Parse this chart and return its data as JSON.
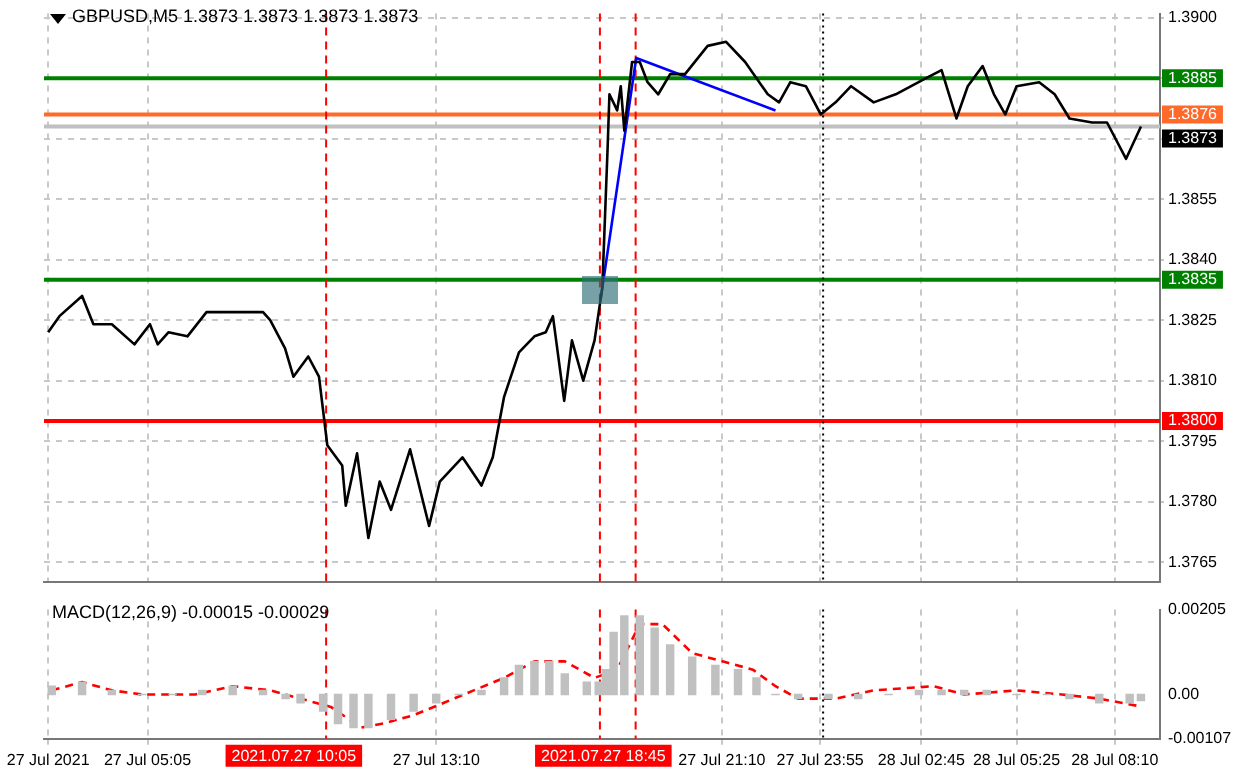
{
  "chart_data": [
    {
      "type": "line",
      "title": "GBPUSD,M5 1.3873 1.3873 1.3873 1.3873",
      "xlim": [
        "2021-07-27T02:11",
        "2021-07-28T09:26"
      ],
      "xticks": [
        "2021-07-27T02:18",
        "2021-07-27T05:05",
        "2021-07-27T13:10",
        "2021-07-27T21:10",
        "2021-07-27T23:55",
        "2021-07-28T02:45",
        "2021-07-28T05:25",
        "2021-07-28T08:10"
      ],
      "ylim": [
        1.376,
        1.3901
      ],
      "yticks": [
        {
          "value": 1.39,
          "label": "1.3900"
        },
        {
          "value": 1.3885,
          "label": null
        },
        {
          "value": 1.387,
          "label": null
        },
        {
          "value": 1.3855,
          "label": "1.3855"
        },
        {
          "value": 1.384,
          "label": "1.3840"
        },
        {
          "value": 1.3825,
          "label": "1.3825"
        },
        {
          "value": 1.381,
          "label": "1.3810"
        },
        {
          "value": 1.3795,
          "label": "1.3795"
        },
        {
          "value": 1.378,
          "label": "1.3780"
        },
        {
          "value": 1.3765,
          "label": "1.3765"
        }
      ],
      "tick_labels": "y",
      "grid": true,
      "legend": false,
      "marker": "none",
      "series": [
        {
          "color": "#000000",
          "x": [
            "2021-07-27T02:18",
            "2021-07-27T02:37",
            "2021-07-27T03:15",
            "2021-07-27T03:34",
            "2021-07-27T04:05",
            "2021-07-27T04:43",
            "2021-07-27T05:09",
            "2021-07-27T05:22",
            "2021-07-27T05:40",
            "2021-07-27T06:12",
            "2021-07-27T06:44",
            "2021-07-27T07:16",
            "2021-07-27T07:41",
            "2021-07-27T08:19",
            "2021-07-27T08:31",
            "2021-07-27T08:56",
            "2021-07-27T09:10",
            "2021-07-27T09:35",
            "2021-07-27T09:53",
            "2021-07-27T10:07",
            "2021-07-27T10:32",
            "2021-07-27T10:38",
            "2021-07-27T10:57",
            "2021-07-27T11:16",
            "2021-07-27T11:35",
            "2021-07-27T11:54",
            "2021-07-27T12:26",
            "2021-07-27T12:58",
            "2021-07-27T13:16",
            "2021-07-27T13:54",
            "2021-07-27T14:26",
            "2021-07-27T14:45",
            "2021-07-27T15:04",
            "2021-07-27T15:29",
            "2021-07-27T15:55",
            "2021-07-27T16:14",
            "2021-07-27T16:26",
            "2021-07-27T16:45",
            "2021-07-27T16:58",
            "2021-07-27T17:17",
            "2021-07-27T17:36",
            "2021-07-27T17:49",
            "2021-07-27T17:58",
            "2021-07-27T18:01",
            "2021-07-27T18:14",
            "2021-07-27T18:20",
            "2021-07-27T18:26",
            "2021-07-27T18:39",
            "2021-07-27T18:52",
            "2021-07-27T19:05",
            "2021-07-27T19:23",
            "2021-07-27T19:43",
            "2021-07-27T20:08",
            "2021-07-27T20:46",
            "2021-07-27T21:17",
            "2021-07-27T21:49",
            "2021-07-27T22:27",
            "2021-07-27T22:46",
            "2021-07-27T23:05",
            "2021-07-27T23:31",
            "2021-07-27T23:56",
            "2021-07-28T00:21",
            "2021-07-28T00:47",
            "2021-07-28T01:25",
            "2021-07-28T02:02",
            "2021-07-28T02:53",
            "2021-07-28T03:19",
            "2021-07-28T03:44",
            "2021-07-28T04:03",
            "2021-07-28T04:28",
            "2021-07-28T04:47",
            "2021-07-28T05:06",
            "2021-07-28T05:25",
            "2021-07-28T06:03",
            "2021-07-28T06:29",
            "2021-07-28T06:54",
            "2021-07-28T07:32",
            "2021-07-28T07:57",
            "2021-07-28T08:29",
            "2021-07-28T08:54"
          ],
          "values": [
            1.3822,
            1.3826,
            1.3831,
            1.3824,
            1.3824,
            1.3819,
            1.3824,
            1.3819,
            1.3822,
            1.3821,
            1.3827,
            1.3827,
            1.3827,
            1.3827,
            1.3825,
            1.3818,
            1.3811,
            1.3816,
            1.3811,
            1.3794,
            1.3789,
            1.3779,
            1.3792,
            1.3771,
            1.3785,
            1.3778,
            1.3793,
            1.3774,
            1.3785,
            1.3791,
            1.3784,
            1.3791,
            1.3806,
            1.3817,
            1.3821,
            1.3822,
            1.3826,
            1.3805,
            1.382,
            1.381,
            1.382,
            1.3833,
            1.3868,
            1.3881,
            1.3877,
            1.3883,
            1.3872,
            1.3889,
            1.3889,
            1.3884,
            1.3881,
            1.3886,
            1.3886,
            1.3893,
            1.3894,
            1.3889,
            1.3881,
            1.3879,
            1.3884,
            1.3883,
            1.3876,
            1.3879,
            1.3883,
            1.3879,
            1.3881,
            1.3885,
            1.3887,
            1.3875,
            1.3883,
            1.3888,
            1.3881,
            1.3876,
            1.3883,
            1.3884,
            1.3881,
            1.3875,
            1.3874,
            1.3874,
            1.3865,
            1.3873
          ]
        },
        {
          "color": "#0000ff",
          "x": [
            "2021-07-27T17:46",
            "2021-07-27T18:46",
            "2021-07-27T22:40"
          ],
          "values": [
            1.383,
            1.389,
            1.3877
          ]
        }
      ],
      "ref_lines": [
        {
          "axis": "y",
          "value": 1.3885,
          "label": "1.3885",
          "color": "#008000"
        },
        {
          "axis": "y",
          "value": 1.3876,
          "label": "1.3876",
          "color": "#ff6a2a"
        },
        {
          "axis": "y",
          "value": 1.3873,
          "label": "1.3873",
          "color": "#c0c0c0"
        },
        {
          "axis": "y",
          "value": 1.3835,
          "label": "1.3835",
          "color": "#008000"
        },
        {
          "axis": "y",
          "value": 1.38,
          "label": "1.3800",
          "color": "#ff0000"
        },
        {
          "axis": "x",
          "value": "2021-07-27T10:05",
          "color": "#ff0000",
          "line_style": "dashed"
        },
        {
          "axis": "x",
          "value": "2021-07-27T17:45",
          "color": "#ff0000",
          "line_style": "dashed"
        },
        {
          "axis": "x",
          "value": "2021-07-27T18:45",
          "color": "#ff0000",
          "line_style": "dashed"
        },
        {
          "axis": "x",
          "value": "2021-07-28T00:00",
          "color": "#000000",
          "line_style": "dotted"
        }
      ]
    },
    {
      "type": "bar",
      "title": "MACD(12,26,9) -0.00015 -0.00029",
      "xlim": [
        "2021-07-27T02:11",
        "2021-07-28T09:26"
      ],
      "xticks": [
        {
          "value": "2021-07-27T02:18",
          "label": "27 Jul 2021"
        },
        {
          "value": "2021-07-27T05:05",
          "label": "27 Jul 05:05"
        },
        {
          "value": "2021-07-27T13:10",
          "label": "27 Jul 13:10"
        },
        {
          "value": "2021-07-27T21:10",
          "label": "27 Jul 21:10"
        },
        {
          "value": "2021-07-27T23:55",
          "label": "27 Jul 23:55"
        },
        {
          "value": "2021-07-28T02:45",
          "label": "28 Jul 02:45"
        },
        {
          "value": "2021-07-28T05:25",
          "label": "28 Jul 05:25"
        },
        {
          "value": "2021-07-28T08:10",
          "label": "28 Jul 08:10"
        }
      ],
      "ylim": [
        -0.00107,
        0.00205
      ],
      "yticks": [
        0.00205,
        {
          "value": 0,
          "label": "0.00"
        },
        -0.00107
      ],
      "grid": "x",
      "legend": false,
      "marker": "none",
      "series": [
        {
          "color": "#c0c0c0",
          "x": [
            "2021-07-27T02:24",
            "2021-07-27T03:15",
            "2021-07-27T04:05",
            "2021-07-27T04:56",
            "2021-07-27T05:47",
            "2021-07-27T06:37",
            "2021-07-27T07:28",
            "2021-07-27T08:19",
            "2021-07-27T08:57",
            "2021-07-27T09:22",
            "2021-07-27T10:00",
            "2021-07-27T10:25",
            "2021-07-27T10:51",
            "2021-07-27T11:16",
            "2021-07-27T11:54",
            "2021-07-27T12:32",
            "2021-07-27T13:10",
            "2021-07-27T13:48",
            "2021-07-27T14:26",
            "2021-07-27T15:04",
            "2021-07-27T15:29",
            "2021-07-27T15:55",
            "2021-07-27T16:20",
            "2021-07-27T16:46",
            "2021-07-27T17:23",
            "2021-07-27T17:43",
            "2021-07-27T17:55",
            "2021-07-27T18:08",
            "2021-07-27T18:26",
            "2021-07-27T18:52",
            "2021-07-27T19:17",
            "2021-07-27T19:43",
            "2021-07-27T20:20",
            "2021-07-27T20:59",
            "2021-07-27T21:37",
            "2021-07-27T22:08",
            "2021-07-27T22:40",
            "2021-07-27T23:18",
            "2021-07-28T00:09",
            "2021-07-28T00:59",
            "2021-07-28T01:50",
            "2021-07-28T02:41",
            "2021-07-28T03:19",
            "2021-07-28T03:57",
            "2021-07-28T04:35",
            "2021-07-28T05:25",
            "2021-07-28T06:16",
            "2021-07-28T06:54",
            "2021-07-28T07:44",
            "2021-07-28T08:35",
            "2021-07-28T08:54"
          ],
          "values": [
            0.0002,
            0.0003,
            0.0001,
            0,
            0,
            0.0001,
            0.0002,
            0.0001,
            -0.0001,
            -0.0002,
            -0.0004,
            -0.0007,
            -0.0008,
            -0.0008,
            -0.0006,
            -0.0004,
            -0.0002,
            0,
            0.0001,
            0.0004,
            0.0007,
            0.0008,
            0.0008,
            0.0005,
            0.0003,
            0.0003,
            0.0006,
            0.0015,
            0.0019,
            0.0019,
            0.0016,
            0.0012,
            0.0009,
            0.0007,
            0.0006,
            0.0004,
            0,
            -0.0001,
            -0.0001,
            -0.0001,
            0,
            0.0001,
            0.0001,
            0.0001,
            0.0001,
            0,
            0,
            -0.0001,
            -0.0002,
            -0.0002,
            -0.00015
          ]
        },
        {
          "type": "line",
          "color": "#ff0000",
          "line_style": "dashed",
          "x": [
            "2021-07-27T02:24",
            "2021-07-27T03:15",
            "2021-07-27T04:05",
            "2021-07-27T04:56",
            "2021-07-27T06:25",
            "2021-07-27T07:28",
            "2021-07-27T08:31",
            "2021-07-27T09:22",
            "2021-07-27T10:13",
            "2021-07-27T11:04",
            "2021-07-27T11:41",
            "2021-07-27T12:32",
            "2021-07-27T13:23",
            "2021-07-27T14:13",
            "2021-07-27T15:04",
            "2021-07-27T15:55",
            "2021-07-27T16:46",
            "2021-07-27T17:36",
            "2021-07-27T18:14",
            "2021-07-27T18:52",
            "2021-07-27T19:30",
            "2021-07-27T20:20",
            "2021-07-27T21:11",
            "2021-07-27T22:02",
            "2021-07-27T22:40",
            "2021-07-27T23:18",
            "2021-07-28T00:21",
            "2021-07-28T01:25",
            "2021-07-28T03:06",
            "2021-07-28T03:57",
            "2021-07-28T05:25",
            "2021-07-28T06:41",
            "2021-07-28T07:44",
            "2021-07-28T08:54"
          ],
          "values": [
            0.0001,
            0.0003,
            0.0001,
            0,
            0,
            0.0002,
            0.0001,
            -0.0001,
            -0.0003,
            -0.0008,
            -0.0007,
            -0.0005,
            -0.0002,
            0.0001,
            0.0004,
            0.0008,
            0.0008,
            0.0004,
            0.0006,
            0.0017,
            0.0017,
            0.001,
            0.0008,
            0.0006,
            0.0002,
            -0.0001,
            -0.0001,
            0.0001,
            0.0002,
            0,
            0.0001,
            0,
            -0.0001,
            -0.00029
          ]
        }
      ],
      "ref_lines": [
        {
          "axis": "x",
          "value": "2021-07-27T10:05",
          "color": "#ff0000",
          "line_style": "dashed",
          "label": "2021.07.27 10:05"
        },
        {
          "axis": "x",
          "value": "2021-07-27T17:45",
          "color": "#ff0000",
          "line_style": "dashed"
        },
        {
          "axis": "x",
          "value": "2021-07-27T18:45",
          "color": "#ff0000",
          "line_style": "dashed",
          "label": "2021.07.27 18:45"
        },
        {
          "axis": "x",
          "value": "2021-07-28T00:00",
          "color": "#000000",
          "line_style": "dotted"
        }
      ]
    }
  ]
}
